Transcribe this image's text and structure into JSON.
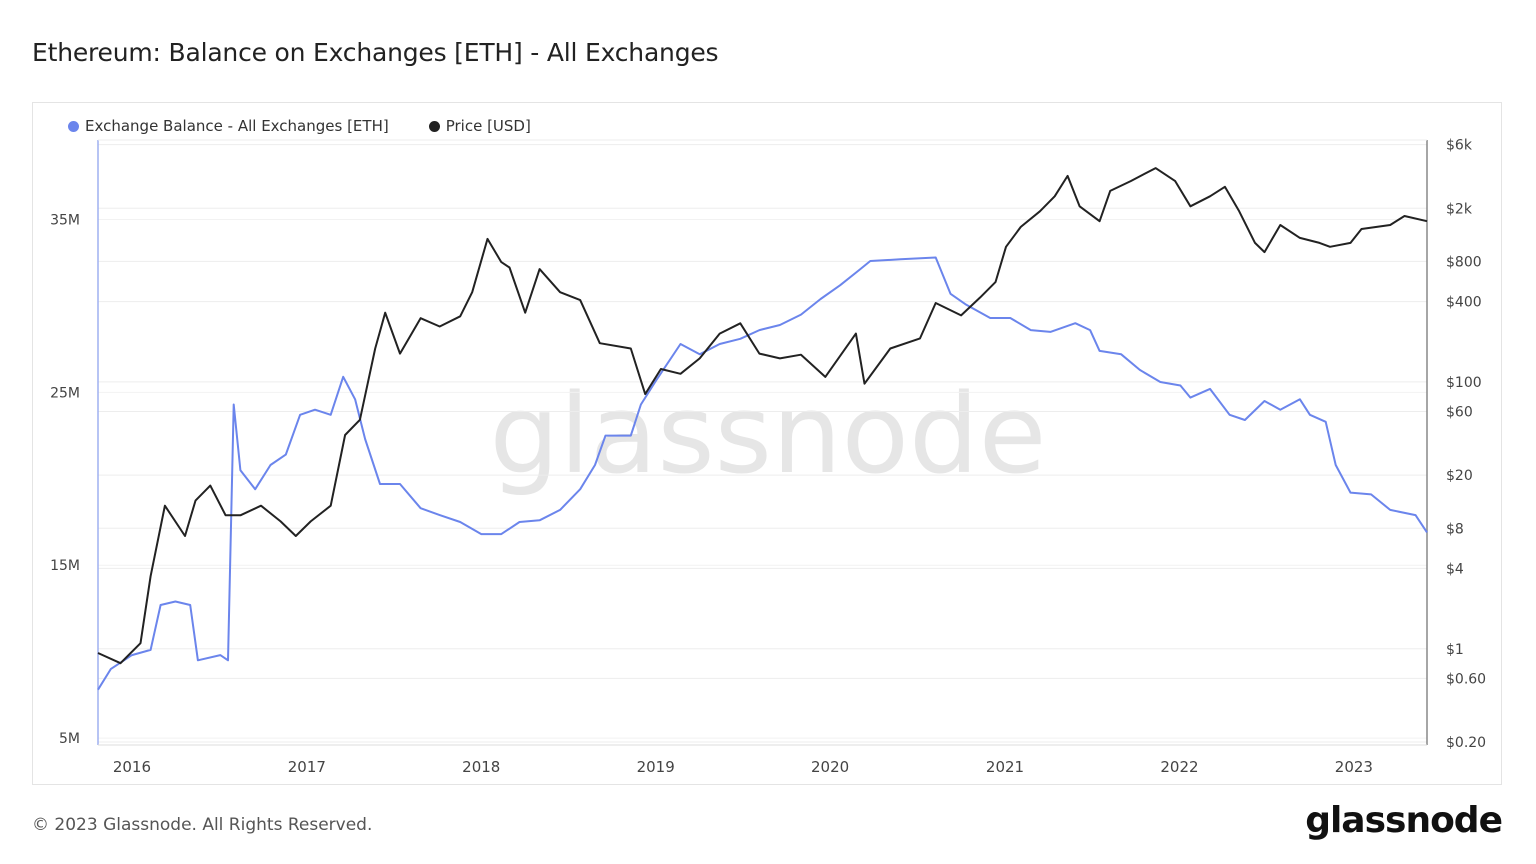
{
  "title": "Ethereum: Balance on Exchanges [ETH] - All Exchanges",
  "footer": "© 2023 Glassnode. All Rights Reserved.",
  "logo": "glassnode",
  "watermark": "glassnode",
  "chart_data": {
    "type": "line",
    "title": "Ethereum: Balance on Exchanges [ETH] - All Exchanges",
    "legend_position": "top-left",
    "grid": true,
    "x_range": [
      "2015-10-22",
      "2023-06-03"
    ],
    "x_ticks": [
      "2016",
      "2017",
      "2018",
      "2019",
      "2020",
      "2021",
      "2022",
      "2023"
    ],
    "y_left": {
      "ticks": [
        5,
        15,
        25,
        35
      ],
      "tick_labels": [
        "5M",
        "15M",
        "25M",
        "35M"
      ],
      "range": [
        4.6,
        39.6
      ],
      "scale": "linear",
      "unit": "M ETH"
    },
    "y_right": {
      "ticks": [
        0.2,
        0.6,
        1,
        4,
        8,
        20,
        60,
        100,
        400,
        800,
        2000,
        6000
      ],
      "tick_labels": [
        "$0.20",
        "$0.60",
        "$1",
        "$4",
        "$8",
        "$20",
        "$60",
        "$100",
        "$400",
        "$800",
        "$2k",
        "$6k"
      ],
      "range": [
        0.19,
        6500
      ],
      "scale": "log"
    },
    "series": [
      {
        "name": "Exchange Balance - All Exchanges [ETH]",
        "axis": "left",
        "color": "#6b85ec",
        "unit": "M",
        "x": [
          "2015-10-22",
          "2015-11-18",
          "2016-01-01",
          "2016-02-09",
          "2016-03-01",
          "2016-04-01",
          "2016-05-02",
          "2016-05-18",
          "2016-07-04",
          "2016-07-20",
          "2016-08-01",
          "2016-08-15",
          "2016-09-15",
          "2016-10-17",
          "2016-11-18",
          "2016-12-18",
          "2017-01-18",
          "2017-02-20",
          "2017-03-18",
          "2017-04-12",
          "2017-05-03",
          "2017-06-03",
          "2017-07-15",
          "2017-08-27",
          "2017-10-06",
          "2017-11-18",
          "2018-01-01",
          "2018-02-12",
          "2018-03-22",
          "2018-05-03",
          "2018-06-15",
          "2018-07-27",
          "2018-08-27",
          "2018-09-18",
          "2018-11-10",
          "2018-12-01",
          "2019-01-02",
          "2019-02-22",
          "2019-04-03",
          "2019-05-15",
          "2019-06-27",
          "2019-08-06",
          "2019-09-18",
          "2019-11-01",
          "2019-12-12",
          "2020-01-22",
          "2020-03-03",
          "2020-03-25",
          "2020-05-27",
          "2020-08-09",
          "2020-09-09",
          "2020-10-10",
          "2020-12-01",
          "2021-01-12",
          "2021-02-24",
          "2021-04-06",
          "2021-05-28",
          "2021-06-28",
          "2021-07-18",
          "2021-09-01",
          "2021-10-10",
          "2021-11-22",
          "2022-01-03",
          "2022-01-24",
          "2022-03-06",
          "2022-04-16",
          "2022-05-18",
          "2022-06-28",
          "2022-07-31",
          "2022-09-10",
          "2022-10-01",
          "2022-11-03",
          "2022-11-24",
          "2022-12-25",
          "2023-02-06",
          "2023-03-18",
          "2023-05-10",
          "2023-06-03"
        ],
        "values": [
          7.8,
          9.0,
          9.8,
          10.1,
          12.7,
          12.9,
          12.7,
          9.5,
          9.8,
          9.5,
          24.3,
          20.5,
          19.4,
          20.8,
          21.4,
          23.7,
          24.0,
          23.7,
          25.9,
          24.6,
          22.3,
          19.7,
          19.7,
          18.3,
          17.9,
          17.5,
          16.8,
          16.8,
          17.5,
          17.6,
          18.2,
          19.4,
          20.8,
          22.5,
          22.5,
          24.3,
          25.7,
          27.8,
          27.2,
          27.8,
          28.1,
          28.6,
          28.9,
          29.5,
          30.4,
          31.2,
          32.1,
          32.6,
          32.7,
          32.8,
          30.7,
          30.1,
          29.3,
          29.3,
          28.6,
          28.5,
          29.0,
          28.6,
          27.4,
          27.2,
          26.3,
          25.6,
          25.4,
          24.7,
          25.2,
          23.7,
          23.4,
          24.5,
          24.0,
          24.6,
          23.7,
          23.3,
          20.8,
          19.2,
          19.1,
          18.2,
          17.9,
          16.9
        ]
      },
      {
        "name": "Price [USD]",
        "axis": "right",
        "color": "#222222",
        "x": [
          "2015-10-22",
          "2015-12-08",
          "2016-01-19",
          "2016-02-09",
          "2016-03-10",
          "2016-04-21",
          "2016-05-13",
          "2016-06-13",
          "2016-07-15",
          "2016-08-15",
          "2016-09-27",
          "2016-11-07",
          "2016-12-09",
          "2017-01-09",
          "2017-02-20",
          "2017-03-22",
          "2017-04-22",
          "2017-05-24",
          "2017-06-14",
          "2017-07-15",
          "2017-08-27",
          "2017-10-06",
          "2017-11-18",
          "2017-12-13",
          "2018-01-14",
          "2018-02-12",
          "2018-03-01",
          "2018-04-03",
          "2018-05-03",
          "2018-06-15",
          "2018-07-27",
          "2018-09-06",
          "2018-11-10",
          "2018-12-10",
          "2019-01-12",
          "2019-02-22",
          "2019-04-03",
          "2019-05-15",
          "2019-06-27",
          "2019-08-06",
          "2019-09-18",
          "2019-11-01",
          "2019-12-22",
          "2020-02-24",
          "2020-03-13",
          "2020-05-06",
          "2020-07-07",
          "2020-08-09",
          "2020-10-01",
          "2020-11-10",
          "2020-12-12",
          "2021-01-03",
          "2021-02-03",
          "2021-03-15",
          "2021-04-15",
          "2021-05-12",
          "2021-06-06",
          "2021-07-18",
          "2021-08-09",
          "2021-09-21",
          "2021-11-12",
          "2021-12-23",
          "2022-01-24",
          "2022-03-06",
          "2022-04-06",
          "2022-05-06",
          "2022-06-08",
          "2022-06-28",
          "2022-07-31",
          "2022-09-10",
          "2022-10-21",
          "2022-11-12",
          "2022-12-25",
          "2023-01-17",
          "2023-03-18",
          "2023-04-17",
          "2023-06-03"
        ],
        "values": [
          0.93,
          0.78,
          1.1,
          3.5,
          11.8,
          7,
          12.9,
          16.7,
          10,
          10,
          11.8,
          9,
          7,
          9,
          11.8,
          40,
          52,
          178,
          330,
          163,
          300,
          260,
          310,
          470,
          1180,
          790,
          720,
          330,
          700,
          470,
          410,
          195,
          178,
          81,
          125,
          115,
          150,
          230,
          275,
          163,
          150,
          160,
          109,
          230,
          97,
          178,
          212,
          390,
          315,
          430,
          560,
          1030,
          1450,
          1900,
          2460,
          3500,
          2070,
          1600,
          2700,
          3200,
          4000,
          3200,
          2070,
          2460,
          2900,
          1900,
          1100,
          940,
          1500,
          1200,
          1100,
          1030,
          1100,
          1400,
          1500,
          1750,
          1600
        ]
      }
    ]
  }
}
